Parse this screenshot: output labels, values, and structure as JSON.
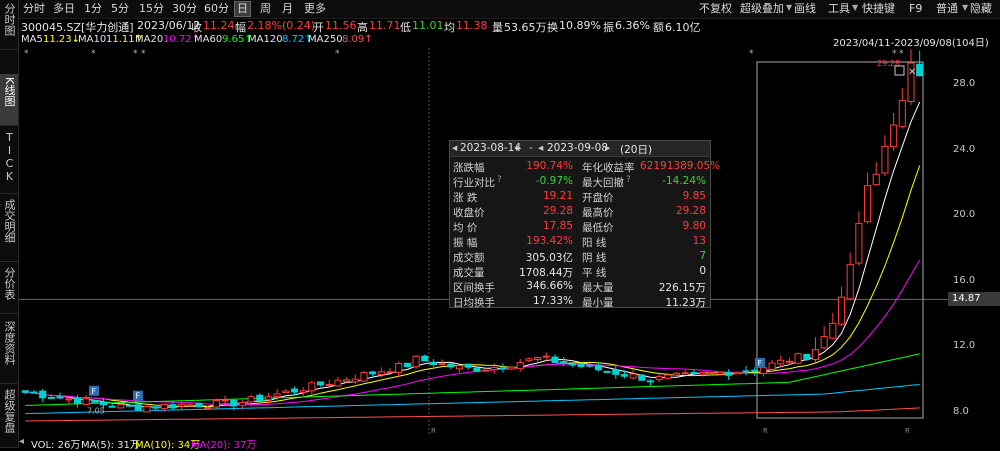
{
  "left_tabs": [
    {
      "label": "分时图"
    },
    {
      "label": "K线图"
    },
    {
      "label": "TICK"
    },
    {
      "label": "成交明细"
    },
    {
      "label": "分价表"
    },
    {
      "label": "深度资料"
    },
    {
      "label": "超级复盘"
    }
  ],
  "toolbar": {
    "periods": [
      "分时",
      "多日",
      "1分",
      "5分",
      "15分",
      "30分",
      "60分",
      "日",
      "周",
      "月",
      "更多"
    ],
    "active_period": "日",
    "right_items": [
      "不复权",
      "超级叠加",
      "画线",
      "工具",
      "快捷键",
      "F9",
      "普通",
      "隐藏"
    ]
  },
  "info": {
    "code_name": "300045.SZ[华力创通]",
    "date": "2023/06/12",
    "close_label": "收",
    "close": "11.24",
    "change_label": "幅",
    "change": "2.18%(0.24)",
    "open_label": "开",
    "open": "11.56",
    "high_label": "高",
    "high": "11.71",
    "low_label": "低",
    "low": "11.01",
    "avg_label": "均",
    "avg": "11.38",
    "vol_label": "量",
    "vol": "53.65万",
    "turnover_label": "换",
    "turnover": "10.89%",
    "amplitude_label": "振",
    "amplitude": "6.36%",
    "amount_label": "额",
    "amount": "6.10亿"
  },
  "ma": {
    "ma5_label": "MA5",
    "ma5": "11.23↓",
    "ma10_label": "MA10",
    "ma10": "11.11↑",
    "ma20_label": "MA20",
    "ma20": "10.72↑",
    "ma60_label": "MA60",
    "ma60": "9.65↑",
    "ma120_label": "MA120",
    "ma120": "8.72↑",
    "ma250_label": "MA250",
    "ma250": "8.09↑",
    "range": "2023/04/11-2023/09/08(104日)"
  },
  "y_axis": [
    "28.0",
    "24.0",
    "20.0",
    "16.0",
    "12.0",
    "8.0"
  ],
  "current_price": "14.87",
  "peak_label": "29.28",
  "low_label": "7.05",
  "popup": {
    "start": "2023-08-14",
    "end": "2023-09-08",
    "days": "(20日)",
    "left": [
      [
        "涨跌幅",
        "190.74%"
      ],
      [
        "行业对比",
        "-0.97%"
      ],
      [
        "涨 跌",
        "19.21"
      ],
      [
        "收盘价",
        "29.28"
      ],
      [
        "均 价",
        "17.85"
      ],
      [
        "振 幅",
        "193.42%"
      ],
      [
        "成交额",
        "305.03亿"
      ],
      [
        "成交量",
        "1708.44万"
      ],
      [
        "区间换手",
        "346.66%"
      ],
      [
        "日均换手",
        "17.33%"
      ]
    ],
    "right": [
      [
        "年化收益率",
        "62191389.05%"
      ],
      [
        "最大回撤",
        "-14.24%"
      ],
      [
        "开盘价",
        "9.85"
      ],
      [
        "最高价",
        "29.28"
      ],
      [
        "最低价",
        "9.80"
      ],
      [
        "阳 线",
        "13"
      ],
      [
        "阴 线",
        "7"
      ],
      [
        "平 线",
        "0"
      ],
      [
        "最大量",
        "226.15万"
      ],
      [
        "最小量",
        "11.23万"
      ]
    ]
  },
  "volume": {
    "vol": "VOL: 26万",
    "ma5": "MA(5): 31万",
    "ma10": "MA(10): 34万",
    "ma20": "MA(20): 37万"
  },
  "colors": {
    "up": "#ff3c3c",
    "down": "#00d2d2",
    "ma5": "#ffffff",
    "ma10": "#ffff00",
    "ma20": "#ff00ff",
    "ma60": "#00ff00",
    "ma120": "#00c8ff",
    "ma250": "#ff5050"
  }
}
